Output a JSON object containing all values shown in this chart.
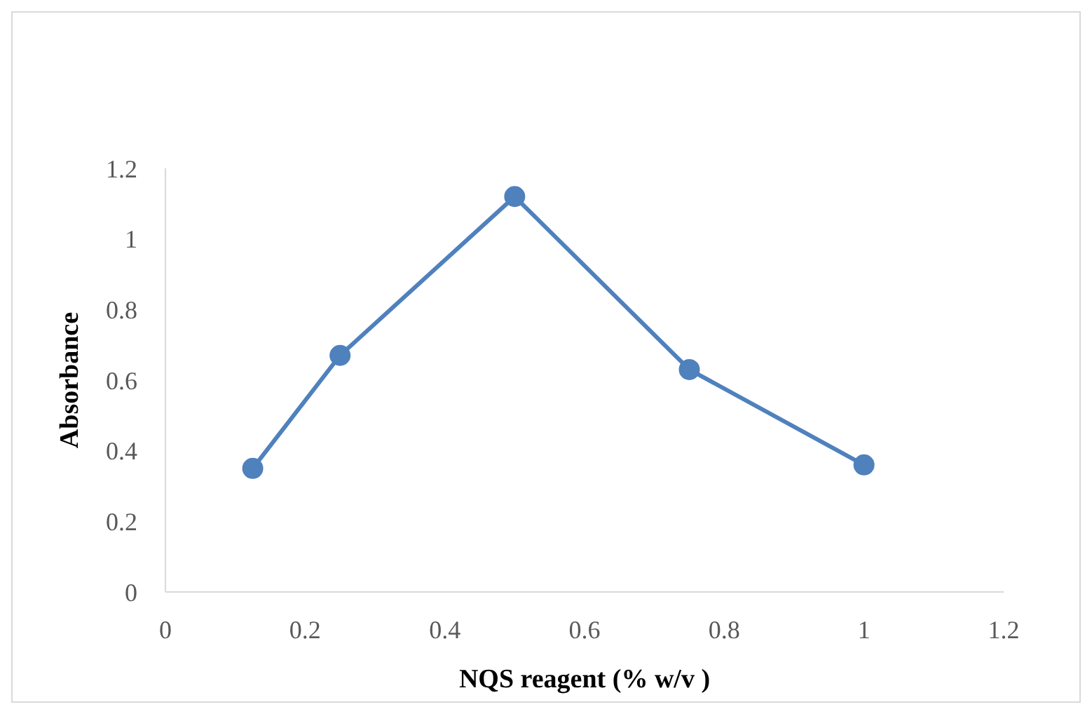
{
  "chart_data": {
    "type": "line",
    "xlabel": "NQS reagent (% w/v )",
    "ylabel": "Absorbance",
    "x": [
      0.125,
      0.25,
      0.5,
      0.75,
      1
    ],
    "series": [
      {
        "color": "#4f81bd",
        "values": [
          0.35,
          0.67,
          1.12,
          0.63,
          0.36
        ]
      }
    ],
    "xlim": [
      0,
      1.2
    ],
    "xticks": [
      0,
      0.2,
      0.4,
      0.6,
      0.8,
      1,
      1.2
    ],
    "ylim": [
      0,
      1.2
    ],
    "yticks": [
      0,
      0.2,
      0.4,
      0.6,
      0.8,
      1,
      1.2
    ],
    "grid": false,
    "legend": false,
    "marker": "circle",
    "line_style": "solid"
  }
}
